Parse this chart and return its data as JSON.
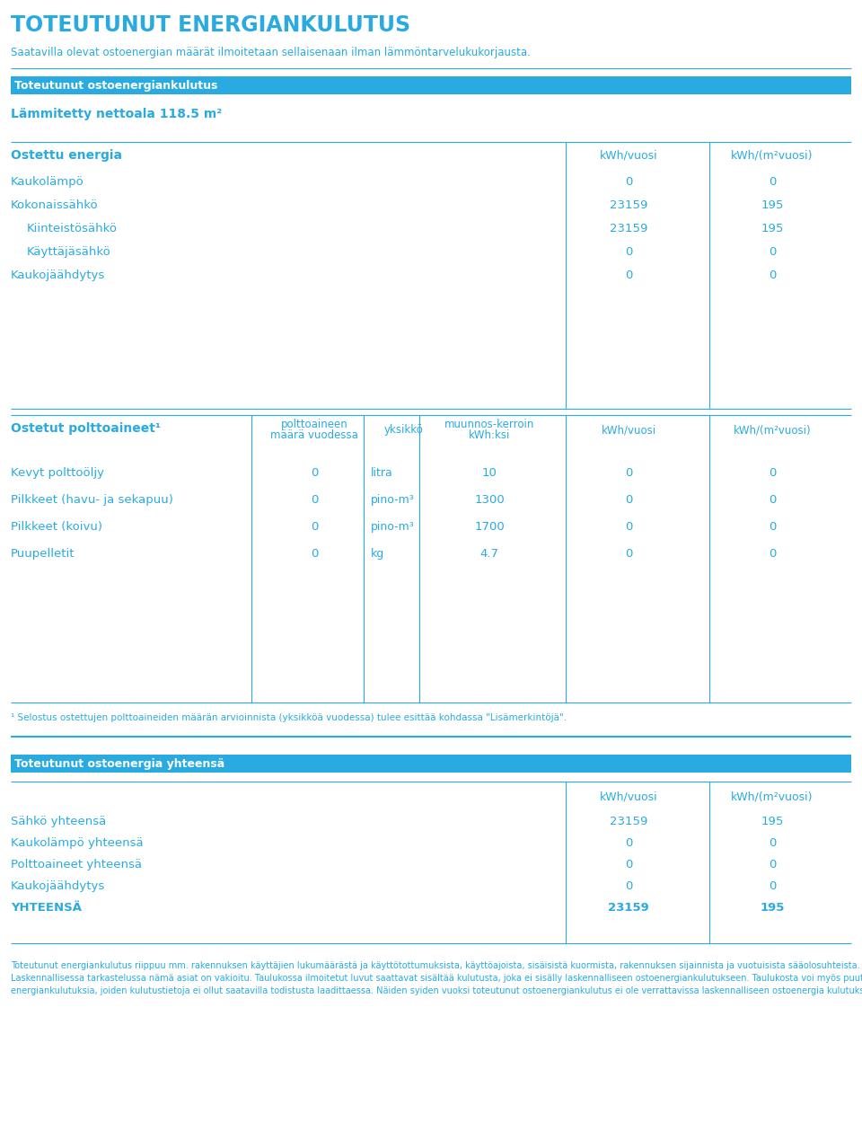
{
  "title": "TOTEUTUNUT ENERGIANKULUTUS",
  "subtitle": "Saatavilla olevat ostoenergian määrät ilmoitetaan sellaisenaan ilman lämmöntarvelukukorjausta.",
  "section1_header": "Toteutunut ostoenergiankulutus",
  "nettoala_label": "Lämmitetty nettoala 118.5 m²",
  "ostettu_energia_label": "Ostettu energia",
  "col_kwh_vuosi": "kWh/vuosi",
  "col_kwh_m2_vuosi": "kWh/(m²vuosi)",
  "energy_rows": [
    {
      "label": "Kaukolämpö",
      "kwh": "0",
      "kwh_m2": "0",
      "indent": false
    },
    {
      "label": "Kokonaissähkö",
      "kwh": "23159",
      "kwh_m2": "195",
      "indent": false
    },
    {
      "label": "Kiinteistösähkö",
      "kwh": "23159",
      "kwh_m2": "195",
      "indent": true
    },
    {
      "label": "Käyttäjäsähkö",
      "kwh": "0",
      "kwh_m2": "0",
      "indent": true
    },
    {
      "label": "Kaukojäähdytys",
      "kwh": "0",
      "kwh_m2": "0",
      "indent": false
    }
  ],
  "ostetut_polttoaineet_label": "Ostetut polttoaineet¹",
  "fuel_rows": [
    {
      "label": "Kevyt polttoöljy",
      "maara": "0",
      "yksikko": "litra",
      "kerroin": "10",
      "kwh": "0",
      "kwh_m2": "0"
    },
    {
      "label": "Pilkkeet (havu- ja sekapuu)",
      "maara": "0",
      "yksikko": "pino-m³",
      "kerroin": "1300",
      "kwh": "0",
      "kwh_m2": "0"
    },
    {
      "label": "Pilkkeet (koivu)",
      "maara": "0",
      "yksikko": "pino-m³",
      "kerroin": "1700",
      "kwh": "0",
      "kwh_m2": "0"
    },
    {
      "label": "Puupelletit",
      "maara": "0",
      "yksikko": "kg",
      "kerroin": "4.7",
      "kwh": "0",
      "kwh_m2": "0"
    }
  ],
  "footnote": "¹ Selostus ostettujen polttoaineiden määrän arvioinnista (yksikköä vuodessa) tulee esittää kohdassa \"Lisämerkintöjä\".",
  "section3_header": "Toteutunut ostoenergia yhteensä",
  "summary_rows": [
    {
      "label": "Sähkö yhteensä",
      "kwh": "23159",
      "kwh_m2": "195",
      "bold": false
    },
    {
      "label": "Kaukolämpö yhteensä",
      "kwh": "0",
      "kwh_m2": "0",
      "bold": false
    },
    {
      "label": "Polttoaineet yhteensä",
      "kwh": "0",
      "kwh_m2": "0",
      "bold": false
    },
    {
      "label": "Kaukojäähdytys",
      "kwh": "0",
      "kwh_m2": "0",
      "bold": false
    },
    {
      "label": "YHTEENSÄ",
      "kwh": "23159",
      "kwh_m2": "195",
      "bold": true
    }
  ],
  "bottom_text_lines": [
    "Toteutunut energiankulutus riippuu mm. rakennuksen käyttäjien lukumäärästä ja käyttötottumuksista, käyttöajoista, sisäisistä kuormista, rakennuksen sijainnista ja vuotuisista sääolosuhteista.",
    "Laskennallisessa tarkastelussa nämä asiat on vakioitu. Taulukossa ilmoitetut luvut saattavat sisältää kulutusta, joka ei sisälly laskennalliseen ostoenergiankulutukseen. Taulukosta voi myös puuttua",
    "energiankulutuksia, joiden kulutustietoja ei ollut saatavilla todistusta laadittaessa. Näiden syiden vuoksi toteutunut ostoenergiankulutus ei ole verrattavissa laskennalliseen ostoenergia kulutukseen."
  ],
  "blue_color": "#29ABE2",
  "header_bg": "#29ABE2",
  "bg_color": "#FFFFFF"
}
